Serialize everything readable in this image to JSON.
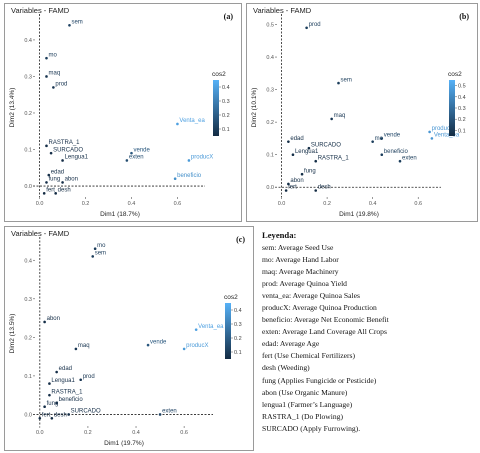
{
  "legend_block": {
    "title": "Leyenda:",
    "items": [
      "sem: Average Seed Use",
      "mo: Average Hand Labor",
      "maq: Average Machinery",
      "prod:  Average Quinoa Yield",
      "venta_ea: Average Quinoa Sales",
      "producX: Average Quinoa Production",
      "beneficio: Average Net Economic Benefit",
      "exten: Average Land Coverage All Crops",
      "edad: Average Age",
      "fert (Use Chemical Fertilizers)",
      "desh (Weeding)",
      "fung (Applies Fungicide or Pesticide)",
      "abon (Use Organic Manure)",
      "lengua1 (Farmer’s Language)",
      "RASTRA_1 (Do Plowing)",
      "SURCADO (Apply Furrowing)."
    ]
  },
  "chart_data": [
    {
      "type": "scatter",
      "title": "Variables - FAMD",
      "tag": "(a)",
      "xlabel": "Dim1 (18.7%)",
      "ylabel": "Dim2 (13.4%)",
      "xlim": [
        -0.02,
        0.72
      ],
      "ylim": [
        -0.03,
        0.46
      ],
      "xticks": [
        0.0,
        0.2,
        0.4,
        0.6
      ],
      "yticks": [
        0.0,
        0.1,
        0.2,
        0.3,
        0.4
      ],
      "colorbar": {
        "title": "cos2",
        "ticks": [
          0.4,
          0.3,
          0.2,
          0.1
        ],
        "range": [
          0.05,
          0.45
        ]
      },
      "points": [
        {
          "label": "sem",
          "x": 0.13,
          "y": 0.44,
          "cos2": 0.12
        },
        {
          "label": "mo",
          "x": 0.03,
          "y": 0.35,
          "cos2": 0.1
        },
        {
          "label": "maq",
          "x": 0.03,
          "y": 0.3,
          "cos2": 0.08
        },
        {
          "label": "prod",
          "x": 0.06,
          "y": 0.27,
          "cos2": 0.08
        },
        {
          "label": "Venta_ea",
          "x": 0.6,
          "y": 0.17,
          "cos2": 0.4
        },
        {
          "label": "vende",
          "x": 0.4,
          "y": 0.09,
          "cos2": 0.18
        },
        {
          "label": "exten",
          "x": 0.38,
          "y": 0.07,
          "cos2": 0.15
        },
        {
          "label": "producX",
          "x": 0.65,
          "y": 0.07,
          "cos2": 0.38
        },
        {
          "label": "beneficio",
          "x": 0.59,
          "y": 0.02,
          "cos2": 0.35
        },
        {
          "label": "RASTRA_1",
          "x": 0.03,
          "y": 0.11,
          "cos2": 0.06
        },
        {
          "label": "SURCADO",
          "x": 0.05,
          "y": 0.09,
          "cos2": 0.06
        },
        {
          "label": "Lengua1",
          "x": 0.1,
          "y": 0.07,
          "cos2": 0.06
        },
        {
          "label": "edad",
          "x": 0.04,
          "y": 0.03,
          "cos2": 0.06
        },
        {
          "label": "abon",
          "x": 0.1,
          "y": 0.01,
          "cos2": 0.06
        },
        {
          "label": "fung",
          "x": 0.03,
          "y": 0.01,
          "cos2": 0.06
        },
        {
          "label": "fert",
          "x": 0.02,
          "y": -0.02,
          "cos2": 0.05
        },
        {
          "label": "desh",
          "x": 0.07,
          "y": -0.02,
          "cos2": 0.05
        }
      ]
    },
    {
      "type": "scatter",
      "title": "Variables - FAMD",
      "tag": "(b)",
      "xlabel": "Dim1 (19.8%)",
      "ylabel": "Dim2 (10.1%)",
      "xlim": [
        -0.02,
        0.7
      ],
      "ylim": [
        -0.03,
        0.52
      ],
      "xticks": [
        0.0,
        0.2,
        0.4,
        0.6
      ],
      "yticks": [
        0.0,
        0.1,
        0.2,
        0.3,
        0.4,
        0.5
      ],
      "colorbar": {
        "title": "cos2",
        "ticks": [
          0.5,
          0.4,
          0.3,
          0.2,
          0.1
        ],
        "range": [
          0.05,
          0.55
        ]
      },
      "points": [
        {
          "label": "prod",
          "x": 0.11,
          "y": 0.49,
          "cos2": 0.12
        },
        {
          "label": "sem",
          "x": 0.25,
          "y": 0.32,
          "cos2": 0.12
        },
        {
          "label": "maq",
          "x": 0.22,
          "y": 0.21,
          "cos2": 0.1
        },
        {
          "label": "vende",
          "x": 0.44,
          "y": 0.15,
          "cos2": 0.15
        },
        {
          "label": "mo",
          "x": 0.4,
          "y": 0.14,
          "cos2": 0.12
        },
        {
          "label": "producX",
          "x": 0.65,
          "y": 0.17,
          "cos2": 0.45
        },
        {
          "label": "Venta_ea",
          "x": 0.66,
          "y": 0.15,
          "cos2": 0.45
        },
        {
          "label": "beneficio",
          "x": 0.44,
          "y": 0.1,
          "cos2": 0.12
        },
        {
          "label": "exten",
          "x": 0.52,
          "y": 0.08,
          "cos2": 0.12
        },
        {
          "label": "edad",
          "x": 0.03,
          "y": 0.14,
          "cos2": 0.06
        },
        {
          "label": "SURCADO",
          "x": 0.12,
          "y": 0.12,
          "cos2": 0.06
        },
        {
          "label": "Lengua1",
          "x": 0.05,
          "y": 0.1,
          "cos2": 0.06
        },
        {
          "label": "RASTRA_1",
          "x": 0.15,
          "y": 0.08,
          "cos2": 0.06
        },
        {
          "label": "fung",
          "x": 0.09,
          "y": 0.04,
          "cos2": 0.06
        },
        {
          "label": "abon",
          "x": 0.03,
          "y": 0.01,
          "cos2": 0.06
        },
        {
          "label": "fert",
          "x": 0.02,
          "y": -0.01,
          "cos2": 0.05
        },
        {
          "label": "desh",
          "x": 0.15,
          "y": -0.01,
          "cos2": 0.05
        }
      ]
    },
    {
      "type": "scatter",
      "title": "Variables - FAMD",
      "tag": "(c)",
      "xlabel": "Dim1 (19.7%)",
      "ylabel": "Dim2 (13.5%)",
      "xlim": [
        -0.02,
        0.72
      ],
      "ylim": [
        -0.03,
        0.45
      ],
      "xticks": [
        0.0,
        0.2,
        0.4,
        0.6
      ],
      "yticks": [
        0.0,
        0.1,
        0.2,
        0.3,
        0.4
      ],
      "colorbar": {
        "title": "cos2",
        "ticks": [
          0.4,
          0.3,
          0.2,
          0.1
        ],
        "range": [
          0.05,
          0.45
        ]
      },
      "points": [
        {
          "label": "mo",
          "x": 0.23,
          "y": 0.43,
          "cos2": 0.1
        },
        {
          "label": "sem",
          "x": 0.22,
          "y": 0.41,
          "cos2": 0.1
        },
        {
          "label": "Venta_ea",
          "x": 0.65,
          "y": 0.22,
          "cos2": 0.4
        },
        {
          "label": "vende",
          "x": 0.45,
          "y": 0.18,
          "cos2": 0.18
        },
        {
          "label": "producX",
          "x": 0.6,
          "y": 0.17,
          "cos2": 0.38
        },
        {
          "label": "abon",
          "x": 0.02,
          "y": 0.24,
          "cos2": 0.06
        },
        {
          "label": "maq",
          "x": 0.15,
          "y": 0.17,
          "cos2": 0.08
        },
        {
          "label": "edad",
          "x": 0.07,
          "y": 0.11,
          "cos2": 0.06
        },
        {
          "label": "prod",
          "x": 0.17,
          "y": 0.09,
          "cos2": 0.08
        },
        {
          "label": "Lengua1",
          "x": 0.04,
          "y": 0.08,
          "cos2": 0.06
        },
        {
          "label": "RASTRA_1",
          "x": 0.04,
          "y": 0.05,
          "cos2": 0.06
        },
        {
          "label": "beneficio",
          "x": 0.07,
          "y": 0.03,
          "cos2": 0.06
        },
        {
          "label": "fung",
          "x": 0.02,
          "y": 0.02,
          "cos2": 0.06
        },
        {
          "label": "SURCADO",
          "x": 0.12,
          "y": 0.0,
          "cos2": 0.06
        },
        {
          "label": "exten",
          "x": 0.5,
          "y": 0.0,
          "cos2": 0.12
        },
        {
          "label": "fert",
          "x": 0.0,
          "y": -0.01,
          "cos2": 0.05
        },
        {
          "label": "desh",
          "x": 0.05,
          "y": -0.01,
          "cos2": 0.05
        }
      ]
    }
  ]
}
